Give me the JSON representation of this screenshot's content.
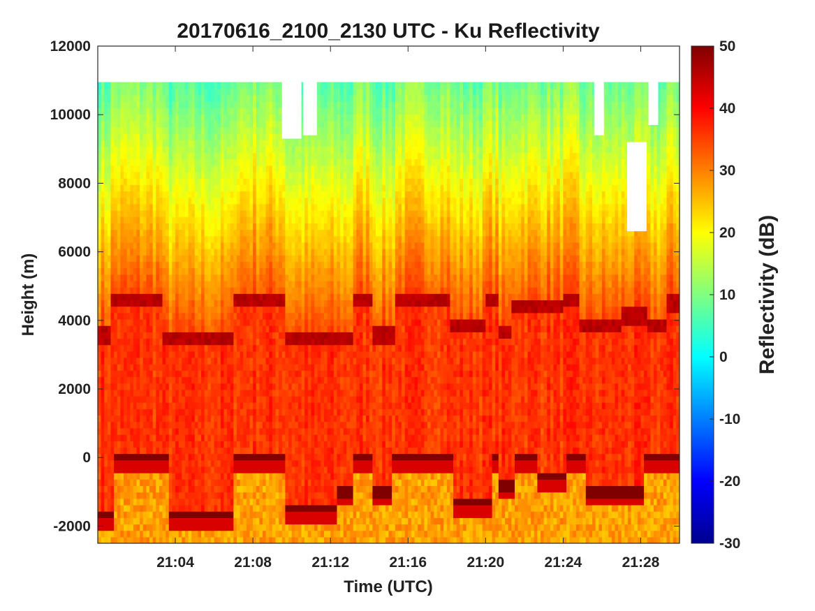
{
  "chart_data": {
    "type": "heatmap",
    "title": "20170616_2100_2130 UTC - Ku Reflectivity",
    "xlabel": "Time (UTC)",
    "ylabel": "Height (m)",
    "x_unit": "minutes after 21:00 UTC",
    "xlim": [
      0,
      30
    ],
    "ylim": [
      -2500,
      12000
    ],
    "data_top": 10950,
    "x_ticks": [
      {
        "value": 4,
        "label": "21:04"
      },
      {
        "value": 8,
        "label": "21:08"
      },
      {
        "value": 12,
        "label": "21:12"
      },
      {
        "value": 16,
        "label": "21:16"
      },
      {
        "value": 20,
        "label": "21:20"
      },
      {
        "value": 24,
        "label": "21:24"
      },
      {
        "value": 28,
        "label": "21:28"
      }
    ],
    "y_ticks": [
      {
        "value": 12000,
        "label": "12000"
      },
      {
        "value": 10000,
        "label": "10000"
      },
      {
        "value": 8000,
        "label": "8000"
      },
      {
        "value": 6000,
        "label": "6000"
      },
      {
        "value": 4000,
        "label": "4000"
      },
      {
        "value": 2000,
        "label": "2000"
      },
      {
        "value": 0,
        "label": "0"
      },
      {
        "value": -2000,
        "label": "-2000"
      }
    ],
    "colorbar": {
      "label": "Reflectivity (dB)",
      "min": -30,
      "max": 50,
      "colormap": "jet",
      "ticks": [
        {
          "value": 50,
          "label": "50"
        },
        {
          "value": 40,
          "label": "40"
        },
        {
          "value": 30,
          "label": "30"
        },
        {
          "value": 20,
          "label": "20"
        },
        {
          "value": 10,
          "label": "10"
        },
        {
          "value": 0,
          "label": "0"
        },
        {
          "value": -10,
          "label": "-10"
        },
        {
          "value": -20,
          "label": "-20"
        },
        {
          "value": -30,
          "label": "-30"
        }
      ]
    },
    "surface_segments": [
      {
        "t0": 0.0,
        "t1": 0.9,
        "h": -1700
      },
      {
        "t0": 1.3,
        "t1": 3.6,
        "h": 0
      },
      {
        "t0": 3.6,
        "t1": 7.0,
        "h": -1700
      },
      {
        "t0": 7.0,
        "t1": 9.6,
        "h": 0
      },
      {
        "t0": 9.6,
        "t1": 12.4,
        "h": -1500
      },
      {
        "t0": 12.4,
        "t1": 13.2,
        "h": -1000
      },
      {
        "t0": 13.2,
        "t1": 14.1,
        "h": 0
      },
      {
        "t0": 14.1,
        "t1": 15.2,
        "h": -1000
      },
      {
        "t0": 15.2,
        "t1": 18.3,
        "h": 0
      },
      {
        "t0": 18.3,
        "t1": 20.3,
        "h": -1300
      },
      {
        "t0": 20.3,
        "t1": 20.6,
        "h": 0
      },
      {
        "t0": 20.6,
        "t1": 21.5,
        "h": -800
      },
      {
        "t0": 21.5,
        "t1": 22.6,
        "h": 0
      },
      {
        "t0": 22.6,
        "t1": 24.2,
        "h": -600
      },
      {
        "t0": 24.2,
        "t1": 25.2,
        "h": 0
      },
      {
        "t0": 25.2,
        "t1": 28.1,
        "h": -1000
      },
      {
        "t0": 28.1,
        "t1": 30.0,
        "h": 0
      }
    ],
    "bright_band_segments": [
      {
        "t0": 0.0,
        "t1": 0.6,
        "h": 3600
      },
      {
        "t0": 0.6,
        "t1": 3.4,
        "h": 4600
      },
      {
        "t0": 3.4,
        "t1": 7.0,
        "h": 3450
      },
      {
        "t0": 7.0,
        "t1": 9.6,
        "h": 4600
      },
      {
        "t0": 9.6,
        "t1": 13.2,
        "h": 3500
      },
      {
        "t0": 13.2,
        "t1": 14.2,
        "h": 4600
      },
      {
        "t0": 14.2,
        "t1": 15.4,
        "h": 3600
      },
      {
        "t0": 15.4,
        "t1": 18.2,
        "h": 4650
      },
      {
        "t0": 18.2,
        "t1": 20.0,
        "h": 3900
      },
      {
        "t0": 20.0,
        "t1": 20.6,
        "h": 4600
      },
      {
        "t0": 20.6,
        "t1": 21.4,
        "h": 3700
      },
      {
        "t0": 21.4,
        "t1": 24.0,
        "h": 4450
      },
      {
        "t0": 24.0,
        "t1": 24.8,
        "h": 4600
      },
      {
        "t0": 24.8,
        "t1": 27.0,
        "h": 3900
      },
      {
        "t0": 27.0,
        "t1": 28.4,
        "h": 4100
      },
      {
        "t0": 28.4,
        "t1": 29.3,
        "h": 3800
      },
      {
        "t0": 29.3,
        "t1": 30.0,
        "h": 4500
      }
    ],
    "no_echo_regions": [
      {
        "t0": 9.5,
        "t1": 10.5,
        "h_min": 9300,
        "h_max": 10950
      },
      {
        "t0": 10.6,
        "t1": 11.3,
        "h_min": 9400,
        "h_max": 10950
      },
      {
        "t0": 25.6,
        "t1": 26.1,
        "h_min": 9400,
        "h_max": 10950
      },
      {
        "t0": 27.3,
        "t1": 28.3,
        "h_min": 6600,
        "h_max": 9200
      },
      {
        "t0": 28.4,
        "t1": 28.9,
        "h_min": 9700,
        "h_max": 10950
      }
    ]
  }
}
